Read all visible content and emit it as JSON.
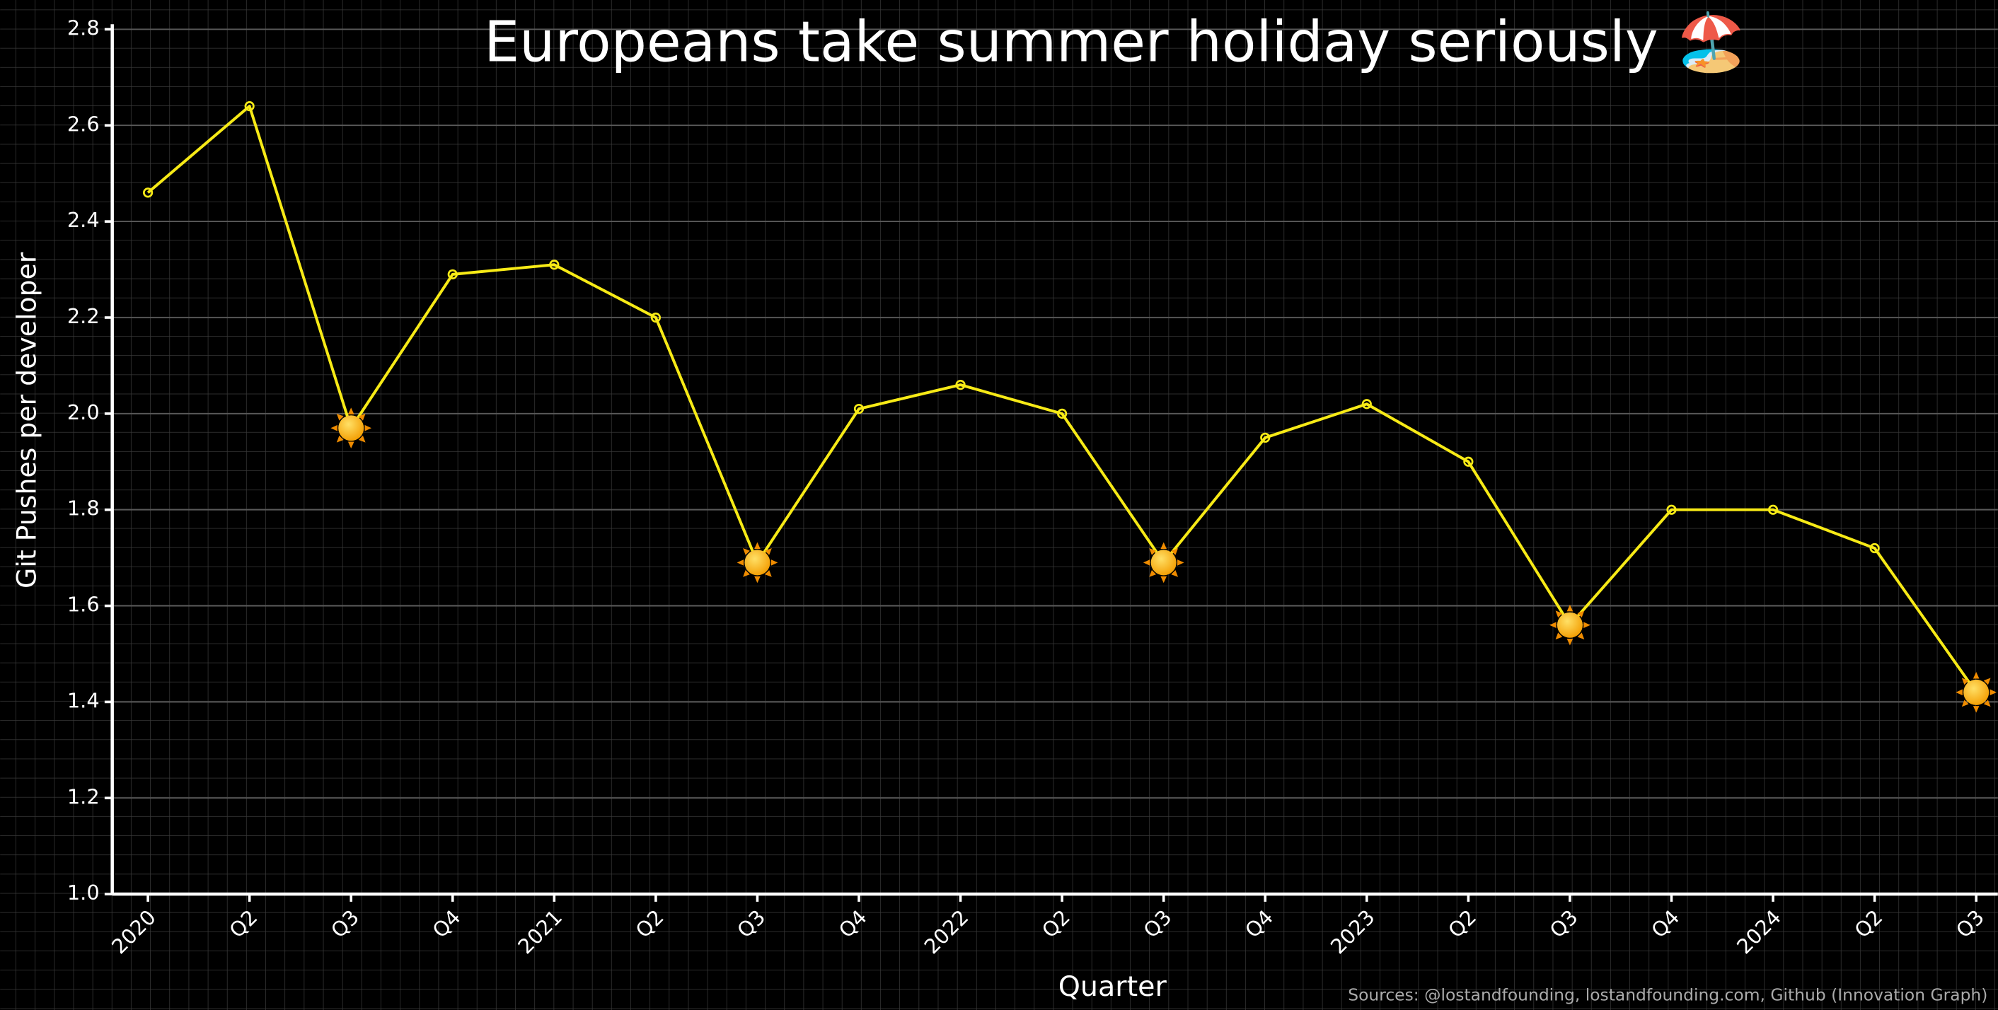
{
  "chart_data": {
    "type": "line",
    "title": "Europeans take summer holiday seriously 🏖️",
    "x_label": "Quarter",
    "y_label": "Git Pushes per developer",
    "source": "Sources: @lostandfounding, lostandfounding.com, Github (Innovation Graph)",
    "categories": [
      "2020",
      "Q2",
      "Q3",
      "Q4",
      "2021",
      "Q2",
      "Q3",
      "Q4",
      "2022",
      "Q2",
      "Q3",
      "Q4",
      "2023",
      "Q2",
      "Q3",
      "Q4",
      "2024",
      "Q2",
      "Q3"
    ],
    "values": [
      2.46,
      2.64,
      1.97,
      2.29,
      2.31,
      2.2,
      1.69,
      2.01,
      2.06,
      2.0,
      1.69,
      1.95,
      2.02,
      1.9,
      1.56,
      1.8,
      1.8,
      1.72,
      1.42
    ],
    "color": "#f7ea16",
    "highlight": {
      "marker": "sun",
      "indices": [
        2,
        6,
        10,
        14,
        18
      ]
    },
    "ylim": [
      1.0,
      2.8
    ],
    "yticks": [
      {
        "value": 1.0,
        "label": "1.0"
      },
      {
        "value": 1.2,
        "label": "1.2"
      },
      {
        "value": 1.4,
        "label": "1.4"
      },
      {
        "value": 1.6,
        "label": "1.6"
      },
      {
        "value": 1.8,
        "label": "1.8"
      },
      {
        "value": 2.0,
        "label": "2.0"
      },
      {
        "value": 2.2,
        "label": "2.2"
      },
      {
        "value": 2.4,
        "label": "2.4"
      },
      {
        "value": 2.6,
        "label": "2.6"
      },
      {
        "value": 2.8,
        "label": "2.8"
      }
    ],
    "grid": true
  }
}
